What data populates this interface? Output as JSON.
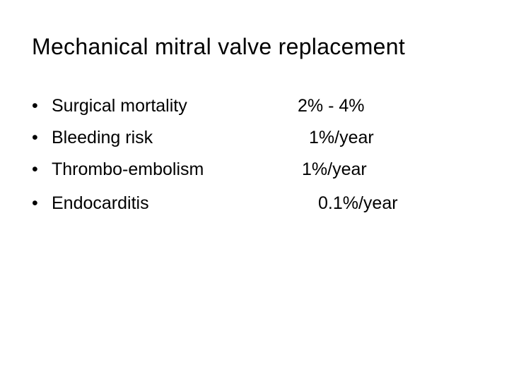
{
  "title": "Mechanical mitral valve replacement",
  "items": [
    {
      "label": "Surgical mortality",
      "value": "2% - 4%"
    },
    {
      "label": "Bleeding risk",
      "value": "1%/year"
    },
    {
      "label": "Thrombo-embolism",
      "value": "1%/year"
    },
    {
      "label": "Endocarditis",
      "value": "0.1%/year"
    }
  ]
}
